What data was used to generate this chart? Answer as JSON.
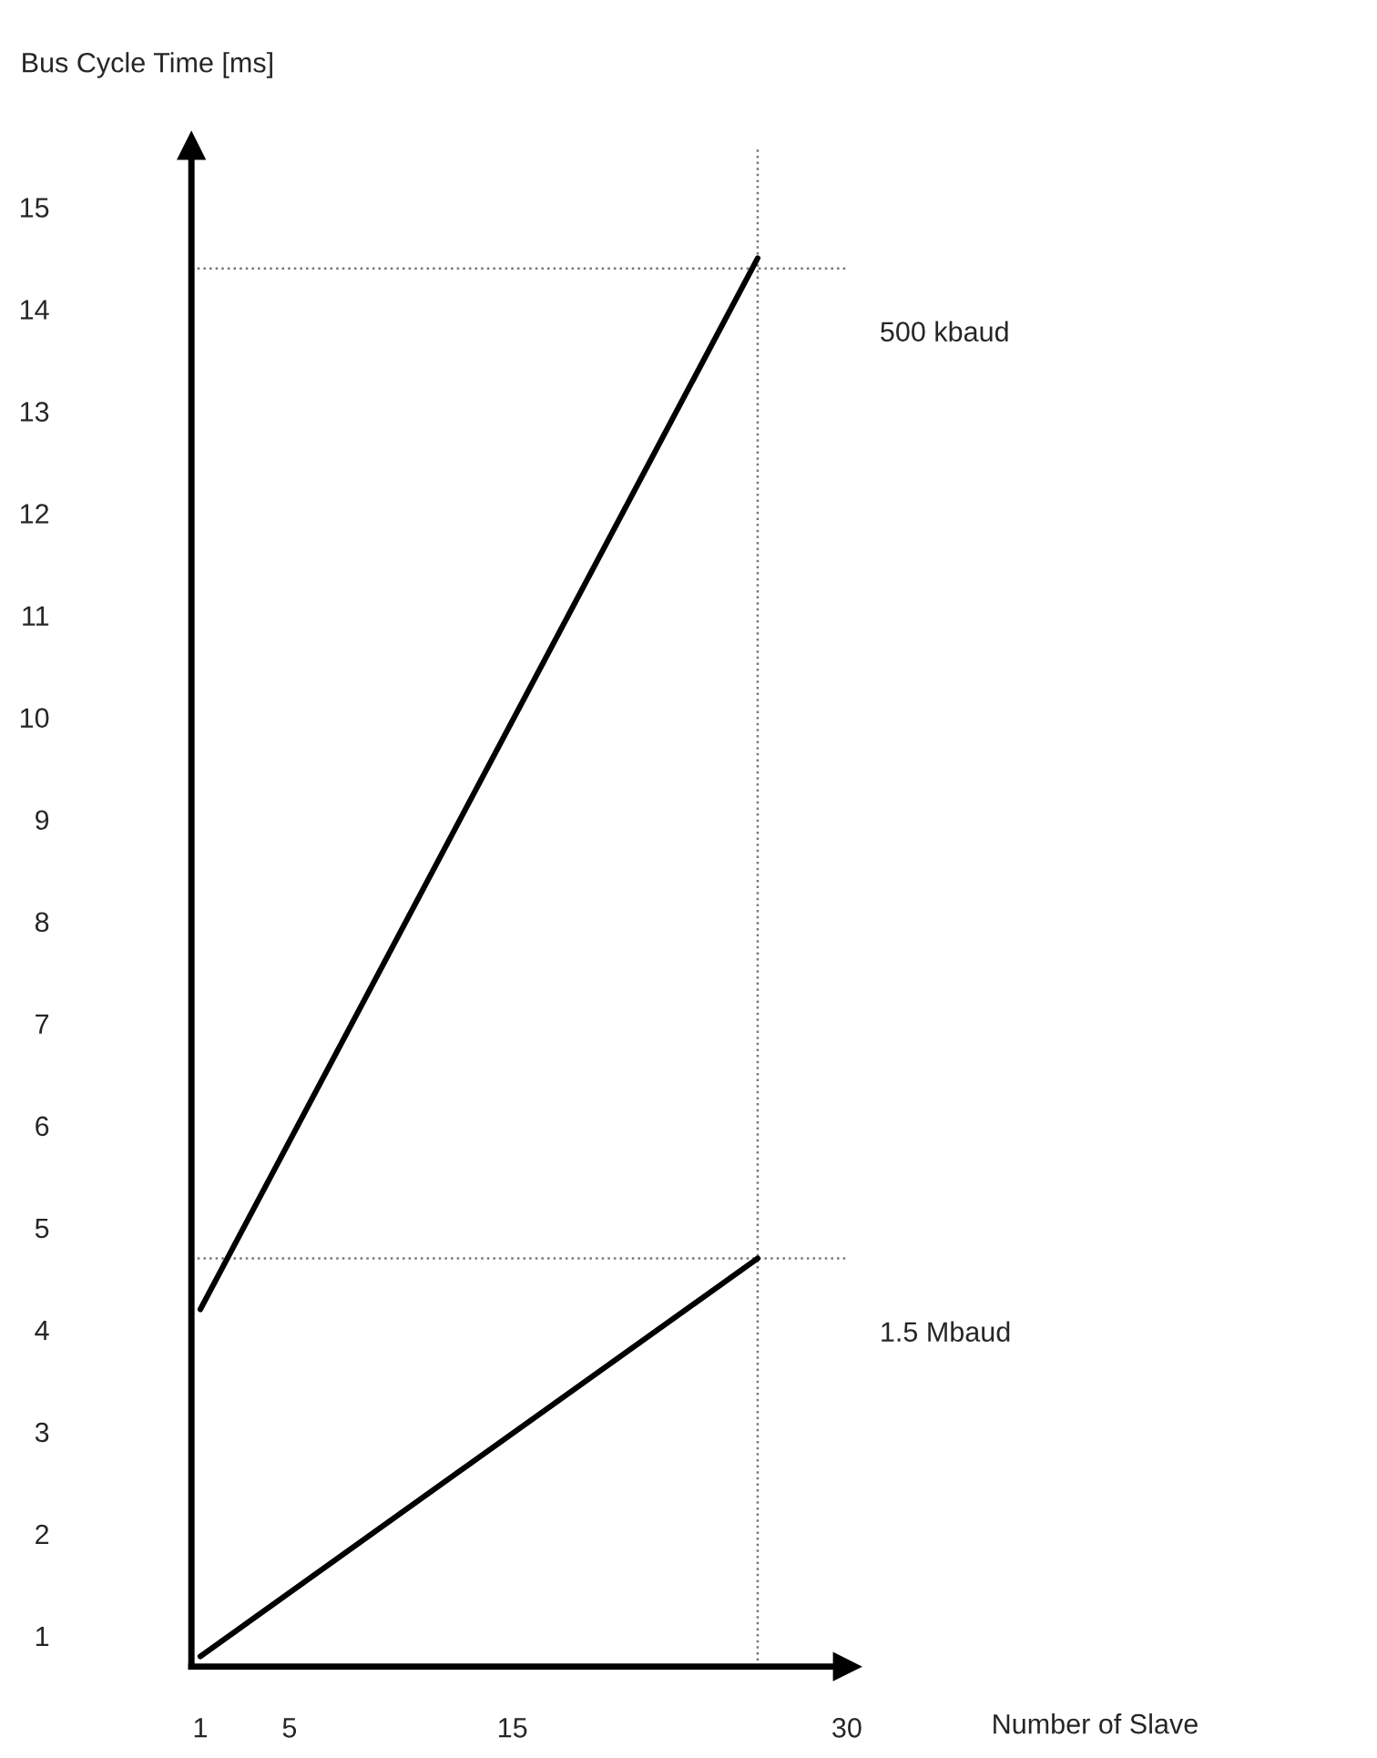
{
  "chart_data": {
    "type": "line",
    "xlabel": "Number of Slave",
    "ylabel": "Bus Cycle Time [ms]",
    "x": [
      1,
      26
    ],
    "series": [
      {
        "name": "500 kbaud",
        "color": "#000000",
        "values": [
          4.2,
          14.5
        ]
      },
      {
        "name": "1.5 Mbaud",
        "color": "#000000",
        "values": [
          0.8,
          4.7
        ]
      }
    ],
    "xlim": [
      0.6,
      30
    ],
    "ylim": [
      0.7,
      15.6
    ],
    "xticks": [
      1,
      5,
      15,
      30
    ],
    "yticks": [
      1,
      2,
      3,
      4,
      5,
      6,
      7,
      8,
      9,
      10,
      11,
      12,
      13,
      14,
      15
    ],
    "ref_lines": [
      {
        "axis": "y",
        "value": 14.4,
        "color": "#777777",
        "line_style": "dotted"
      },
      {
        "axis": "y",
        "value": 4.7,
        "color": "#777777",
        "line_style": "dotted"
      },
      {
        "axis": "x",
        "value": 26,
        "color": "#777777",
        "line_style": "dotted"
      }
    ],
    "grid": false,
    "legend": false,
    "marker": "none",
    "line_style": "solid"
  }
}
